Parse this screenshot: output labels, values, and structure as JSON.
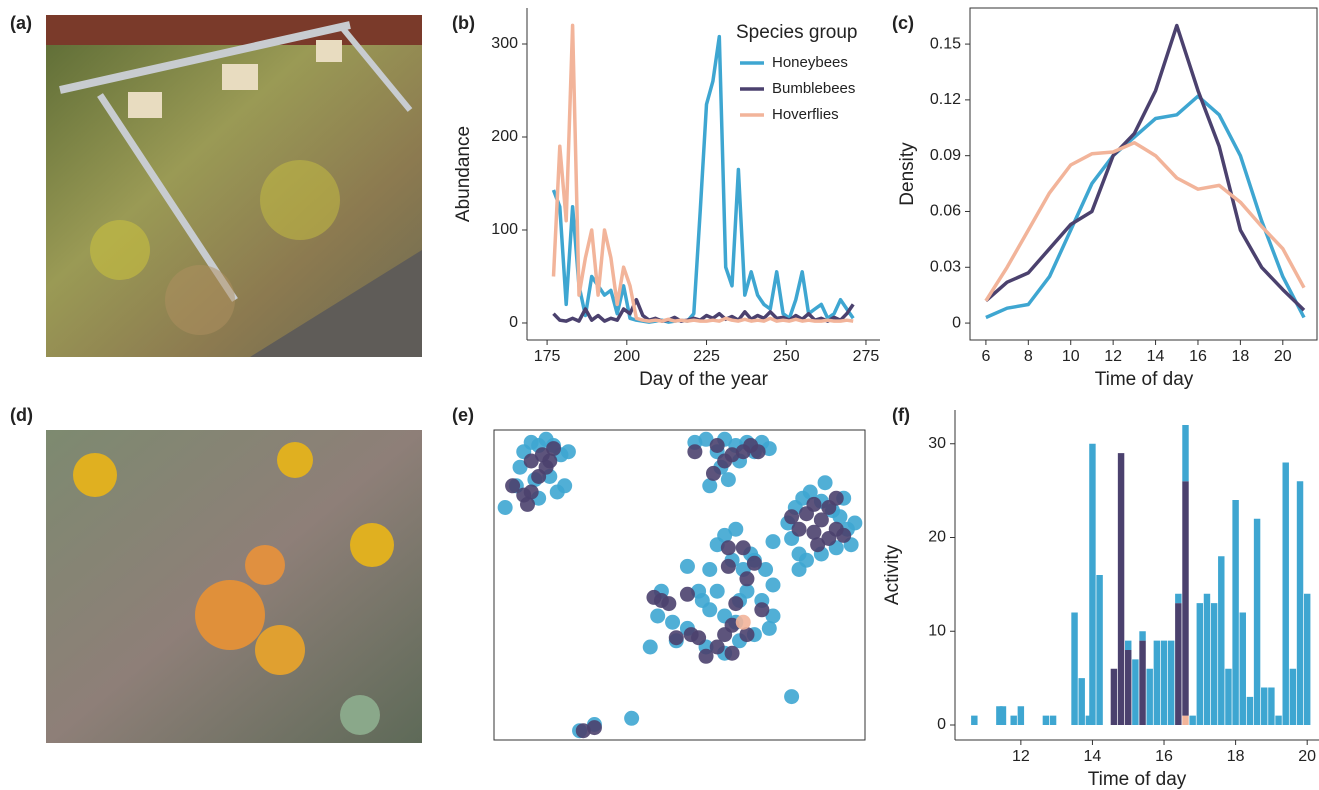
{
  "panel_labels": [
    "(a)",
    "(b)",
    "(c)",
    "(d)",
    "(e)",
    "(f)"
  ],
  "chart_data": [
    {
      "type": "line",
      "xlabel": "Day of the year",
      "ylabel": "Abundance",
      "legend_title": "Species group",
      "xlim": [
        168.7,
        279.4
      ],
      "xticks": [
        175,
        200,
        225,
        250,
        275
      ],
      "ylim": [
        -18.3,
        338.7
      ],
      "yticks": [
        0,
        100,
        200,
        300
      ],
      "x": [
        177,
        179,
        181,
        183,
        185,
        187,
        189,
        191,
        193,
        195,
        197,
        199,
        201,
        203,
        205,
        207,
        209,
        211,
        213,
        215,
        217,
        219,
        221,
        223,
        225,
        227,
        229,
        231,
        233,
        235,
        237,
        239,
        241,
        243,
        245,
        247,
        249,
        251,
        253,
        255,
        257,
        259,
        261,
        263,
        265,
        267,
        269,
        271
      ],
      "series": [
        {
          "name": "Honeybees",
          "color": "#3ea6d1",
          "values": [
            143,
            125,
            20,
            125,
            40,
            8,
            50,
            40,
            30,
            35,
            10,
            40,
            5,
            3,
            2,
            1,
            2,
            3,
            1,
            2,
            3,
            2,
            10,
            120,
            235,
            260,
            308,
            60,
            40,
            165,
            30,
            55,
            30,
            20,
            15,
            55,
            10,
            5,
            25,
            55,
            10,
            15,
            20,
            5,
            10,
            25,
            15,
            5
          ]
        },
        {
          "name": "Bumblebees",
          "color": "#4b416e",
          "values": [
            10,
            3,
            2,
            5,
            2,
            15,
            3,
            8,
            2,
            5,
            3,
            15,
            10,
            25,
            8,
            3,
            5,
            2,
            3,
            6,
            2,
            3,
            5,
            3,
            8,
            5,
            10,
            4,
            7,
            3,
            12,
            4,
            8,
            5,
            12,
            5,
            6,
            3,
            8,
            4,
            10,
            3,
            5,
            2,
            6,
            3,
            10,
            20
          ]
        },
        {
          "name": "Hoverflies",
          "color": "#f2b49a",
          "values": [
            50,
            190,
            110,
            320,
            30,
            70,
            100,
            30,
            100,
            70,
            20,
            60,
            40,
            5,
            3,
            2,
            3,
            2,
            4,
            2,
            3,
            2,
            3,
            2,
            2,
            3,
            2,
            5,
            3,
            2,
            4,
            2,
            3,
            2,
            5,
            2,
            3,
            2,
            4,
            2,
            3,
            2,
            2,
            3,
            2,
            2,
            3,
            2
          ]
        }
      ]
    },
    {
      "type": "line",
      "xlabel": "Time of day",
      "ylabel": "Density",
      "xlim": [
        5.25,
        21.66
      ],
      "xticks": [
        6,
        8,
        10,
        12,
        14,
        16,
        18,
        20
      ],
      "ylim": [
        -0.0091,
        0.1694
      ],
      "yticks": [
        0,
        0.03,
        0.06,
        0.09,
        0.12,
        0.15
      ],
      "x": [
        6,
        7,
        8,
        9,
        10,
        11,
        12,
        13,
        14,
        15,
        16,
        17,
        18,
        19,
        20,
        21
      ],
      "series": [
        {
          "color": "#3ea6d1",
          "values": [
            0.003,
            0.008,
            0.01,
            0.025,
            0.05,
            0.075,
            0.09,
            0.1,
            0.11,
            0.112,
            0.122,
            0.112,
            0.09,
            0.055,
            0.025,
            0.003
          ]
        },
        {
          "color": "#4b416e",
          "values": [
            0.012,
            0.022,
            0.027,
            0.04,
            0.053,
            0.06,
            0.09,
            0.102,
            0.125,
            0.16,
            0.125,
            0.095,
            0.05,
            0.03,
            0.018,
            0.007
          ]
        },
        {
          "color": "#f2b49a",
          "values": [
            0.012,
            0.03,
            0.05,
            0.07,
            0.085,
            0.091,
            0.092,
            0.097,
            0.09,
            0.078,
            0.072,
            0.074,
            0.065,
            0.052,
            0.04,
            0.019
          ]
        }
      ]
    },
    {
      "type": "scatter",
      "xlim": [
        0,
        100
      ],
      "ylim": [
        0,
        100
      ],
      "series": [
        {
          "color": "#3ea6d1",
          "x": [
            3,
            7,
            8,
            10,
            12,
            14,
            16,
            18,
            20,
            11,
            15,
            17,
            19,
            12,
            6,
            54,
            57,
            60,
            62,
            65,
            68,
            70,
            72,
            74,
            61,
            63,
            66,
            58,
            79,
            81,
            83,
            85,
            88,
            91,
            93,
            95,
            97,
            96,
            92,
            88,
            84,
            82,
            80,
            94,
            89,
            82,
            75,
            62,
            65,
            60,
            58,
            64,
            67,
            70,
            73,
            75,
            68,
            72,
            66,
            62,
            58,
            55,
            45,
            48,
            52,
            57,
            62,
            66,
            70,
            74,
            65,
            56,
            52,
            42,
            60,
            69,
            75,
            23,
            27,
            37,
            80,
            49,
            44
          ],
          "y": [
            75,
            88,
            93,
            96,
            95,
            97,
            95,
            92,
            93,
            84,
            85,
            80,
            82,
            78,
            82,
            96,
            97,
            93,
            97,
            95,
            96,
            93,
            96,
            94,
            88,
            84,
            90,
            82,
            70,
            75,
            78,
            80,
            77,
            74,
            72,
            68,
            70,
            63,
            62,
            60,
            58,
            60,
            65,
            78,
            83,
            55,
            64,
            66,
            68,
            63,
            55,
            58,
            55,
            58,
            55,
            50,
            48,
            45,
            45,
            40,
            42,
            48,
            48,
            38,
            36,
            30,
            28,
            32,
            34,
            36,
            38,
            45,
            56,
            30,
            48,
            60,
            40,
            3,
            5,
            7,
            14,
            32,
            40
          ]
        },
        {
          "color": "#4b416e",
          "x": [
            5,
            8,
            10,
            12,
            14,
            16,
            13,
            10,
            9,
            15,
            54,
            60,
            64,
            67,
            69,
            71,
            62,
            59,
            80,
            84,
            86,
            88,
            90,
            92,
            86,
            82,
            90,
            94,
            87,
            92,
            63,
            67,
            70,
            63,
            68,
            45,
            43,
            47,
            52,
            49,
            53,
            55,
            60,
            64,
            57,
            64,
            68,
            62,
            65,
            72,
            24,
            27
          ],
          "y": [
            82,
            79,
            80,
            85,
            88,
            94,
            92,
            90,
            76,
            90,
            93,
            95,
            92,
            93,
            95,
            93,
            90,
            86,
            72,
            73,
            76,
            71,
            75,
            68,
            67,
            68,
            65,
            66,
            63,
            78,
            62,
            62,
            57,
            56,
            52,
            45,
            46,
            44,
            47,
            33,
            34,
            33,
            30,
            28,
            27,
            37,
            34,
            34,
            44,
            42,
            3,
            4
          ]
        },
        {
          "color": "#f2b49a",
          "x": [
            67
          ],
          "y": [
            38
          ]
        }
      ]
    },
    {
      "type": "bar",
      "stacked": true,
      "xlabel": "Time of day",
      "ylabel": "Activity",
      "xlim": [
        10.16,
        20.33
      ],
      "xticks": [
        12,
        14,
        16,
        18,
        20
      ],
      "ylim": [
        -1.6,
        33.6
      ],
      "yticks": [
        0,
        10,
        20,
        30
      ],
      "x": [
        10.7,
        11.4,
        11.5,
        11.8,
        12.0,
        12.7,
        12.9,
        13.5,
        13.7,
        13.9,
        14.0,
        14.2,
        14.6,
        14.8,
        15.0,
        15.2,
        15.4,
        15.6,
        15.8,
        16.0,
        16.2,
        16.4,
        16.6,
        16.8,
        17.0,
        17.2,
        17.4,
        17.6,
        17.8,
        18.0,
        18.2,
        18.4,
        18.6,
        18.8,
        19.0,
        19.2,
        19.4,
        19.6,
        19.8,
        20.0
      ],
      "series": [
        {
          "color": "#3ea6d1",
          "values": [
            1,
            2,
            2,
            1,
            2,
            1,
            1,
            12,
            5,
            1,
            30,
            16,
            0,
            0,
            1,
            7,
            1,
            6,
            9,
            9,
            9,
            1,
            6,
            1,
            13,
            14,
            13,
            18,
            6,
            24,
            12,
            3,
            22,
            4,
            4,
            1,
            28,
            6,
            26,
            14
          ]
        },
        {
          "color": "#4b416e",
          "values": [
            0,
            0,
            0,
            0,
            0,
            0,
            0,
            0,
            0,
            0,
            0,
            0,
            6,
            29,
            8,
            0,
            9,
            0,
            0,
            0,
            0,
            13,
            25,
            0,
            0,
            0,
            0,
            0,
            0,
            0,
            0,
            0,
            0,
            0,
            0,
            0,
            0,
            0,
            0,
            0
          ]
        },
        {
          "color": "#f2b49a",
          "values": [
            0,
            0,
            0,
            0,
            0,
            0,
            0,
            0,
            0,
            0,
            0,
            0,
            0,
            0,
            0,
            0,
            0,
            0,
            0,
            0,
            0,
            0,
            1,
            0,
            0,
            0,
            0,
            0,
            0,
            0,
            0,
            0,
            0,
            0,
            0,
            0,
            0,
            0,
            0,
            0
          ]
        }
      ]
    }
  ]
}
